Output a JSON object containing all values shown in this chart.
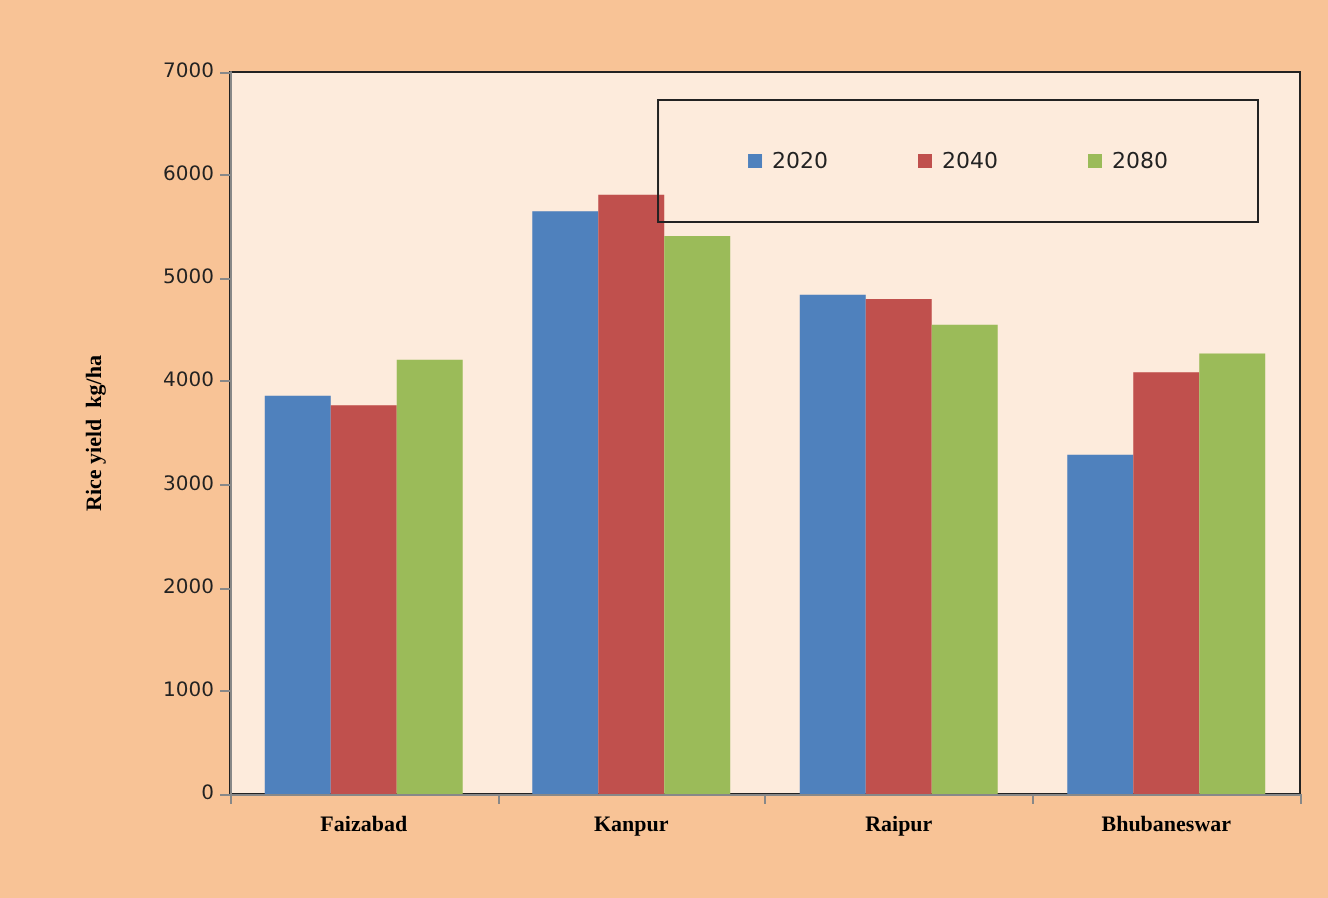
{
  "chart_data": {
    "type": "bar",
    "ylabel": "Rice yield  kg/ha",
    "categories": [
      "Faizabad",
      "Kanpur",
      "Raipur",
      "Bhubaneswar"
    ],
    "series": [
      {
        "name": "2020",
        "color": "#4f81bd",
        "values": [
          3860,
          5650,
          4840,
          3290
        ]
      },
      {
        "name": "2040",
        "color": "#c0504d",
        "values": [
          3770,
          5810,
          4800,
          4090
        ]
      },
      {
        "name": "2080",
        "color": "#9bbb59",
        "values": [
          4210,
          5410,
          4550,
          4270
        ]
      }
    ],
    "ylim": [
      0,
      7000
    ],
    "yticks": [
      0,
      1000,
      2000,
      3000,
      4000,
      5000,
      6000,
      7000
    ],
    "grid": false,
    "legend": "top right"
  }
}
